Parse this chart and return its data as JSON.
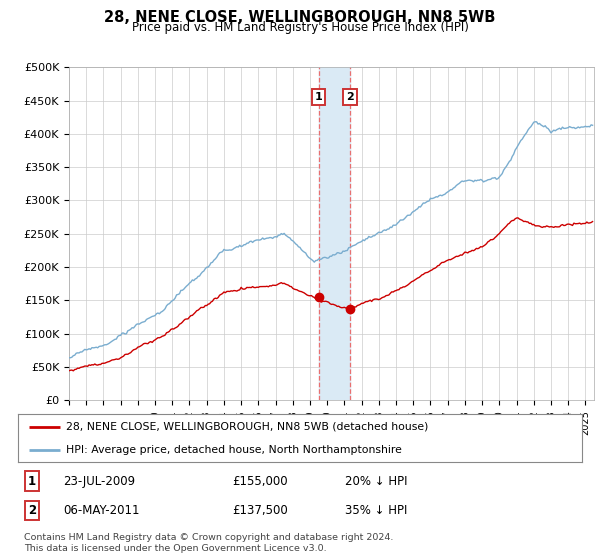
{
  "title": "28, NENE CLOSE, WELLINGBOROUGH, NN8 5WB",
  "subtitle": "Price paid vs. HM Land Registry's House Price Index (HPI)",
  "legend_line1": "28, NENE CLOSE, WELLINGBOROUGH, NN8 5WB (detached house)",
  "legend_line2": "HPI: Average price, detached house, North Northamptonshire",
  "footnote": "Contains HM Land Registry data © Crown copyright and database right 2024.\nThis data is licensed under the Open Government Licence v3.0.",
  "sale1_date": "23-JUL-2009",
  "sale1_price": "£155,000",
  "sale1_hpi": "20% ↓ HPI",
  "sale2_date": "06-MAY-2011",
  "sale2_price": "£137,500",
  "sale2_hpi": "35% ↓ HPI",
  "sale1_yr": 2009.5,
  "sale1_price_val": 155000,
  "sale2_yr": 2011.33,
  "sale2_price_val": 137500,
  "red_color": "#cc0000",
  "blue_color": "#7aadcf",
  "shade_color": "#daeaf5",
  "vline_color": "#e87070",
  "box_edge_color": "#cc3333",
  "ylim": [
    0,
    500000
  ],
  "yticks": [
    0,
    50000,
    100000,
    150000,
    200000,
    250000,
    300000,
    350000,
    400000,
    450000,
    500000
  ],
  "x_start_year": 1995,
  "x_end_year": 2025
}
